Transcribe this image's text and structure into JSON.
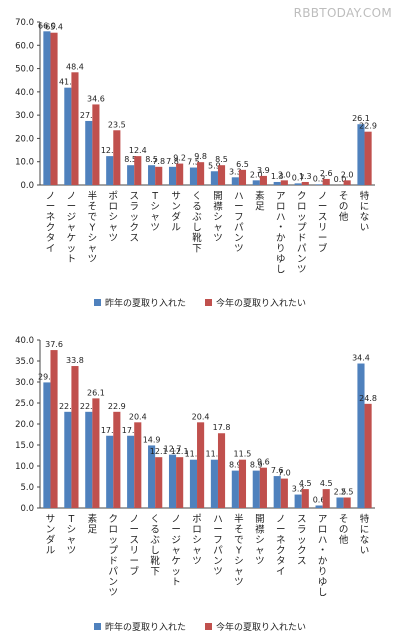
{
  "watermark": "RBBTODAY.COM",
  "colors": {
    "series_a": "#4f81bd",
    "series_b": "#c0504d",
    "axis": "#444444"
  },
  "chart_data": [
    {
      "type": "bar",
      "title": "",
      "xlabel": "",
      "ylabel": "",
      "ylim": [
        0,
        70
      ],
      "yticks": [
        "0.0",
        "10.0",
        "20.0",
        "30.0",
        "40.0",
        "50.0",
        "60.0",
        "70.0"
      ],
      "grid": false,
      "legend": "bottom",
      "categories": [
        "ノーネクタイ",
        "ノージャケット",
        "半そでYシャツ",
        "ポロシャツ",
        "スラックス",
        "Tシャツ",
        "サンダル",
        "くるぶし靴下",
        "開襟シャツ",
        "ハーフパンツ",
        "素足",
        "アロハ・かりゆし",
        "クロップドパンツ",
        "ノースリーブ",
        "その他",
        "特にない"
      ],
      "series": [
        {
          "name": "昨年の夏取り入れた",
          "values": [
            66.0,
            41.8,
            27.5,
            12.4,
            8.5,
            8.5,
            7.8,
            7.5,
            5.9,
            3.3,
            2.0,
            1.3,
            0.7,
            0.3,
            0.0,
            26.1
          ],
          "labels": [
            "66.0",
            "41.8",
            "27.5",
            "12.4",
            "8.5",
            "8.5",
            "7.8",
            "7.5",
            "5.9",
            "3.3",
            "2.0",
            "1.3",
            "0.7",
            "0.3",
            "0.0",
            "26.1"
          ]
        },
        {
          "name": "今年の夏取り入れたい",
          "values": [
            65.4,
            48.4,
            34.6,
            23.5,
            12.4,
            7.8,
            9.2,
            9.8,
            8.5,
            6.5,
            3.9,
            2.0,
            1.3,
            2.6,
            2.0,
            22.9
          ],
          "labels": [
            "65.4",
            "48.4",
            "34.6",
            "23.5",
            "12.4",
            "7.8",
            "9.2",
            "9.8",
            "8.5",
            "6.5",
            "3.9",
            "2.0",
            "1.3",
            "2.6",
            "2.0",
            "22.9"
          ]
        }
      ]
    },
    {
      "type": "bar",
      "title": "",
      "xlabel": "",
      "ylabel": "",
      "ylim": [
        0,
        40
      ],
      "yticks": [
        "0.0",
        "5.0",
        "10.0",
        "15.0",
        "20.0",
        "25.0",
        "30.0",
        "35.0",
        "40.0"
      ],
      "grid": false,
      "legend": "bottom",
      "categories": [
        "サンダル",
        "Tシャツ",
        "素足",
        "クロップドパンツ",
        "ノースリーブ",
        "くるぶし靴下",
        "ノージャケット",
        "ポロシャツ",
        "ハーフパンツ",
        "半そでYシャツ",
        "開襟シャツ",
        "ノーネクタイ",
        "スラックス",
        "アロハ・かりゆし",
        "その他",
        "特にない"
      ],
      "series": [
        {
          "name": "昨年の夏取り入れた",
          "values": [
            29.9,
            22.9,
            22.9,
            17.2,
            17.2,
            14.9,
            12.7,
            11.5,
            11.5,
            8.9,
            8.9,
            7.6,
            3.2,
            0.6,
            2.5,
            34.4
          ],
          "labels": [
            "29.9",
            "22.9",
            "22.9",
            "17.2",
            "17.2",
            "14.9",
            "12.7",
            "11.5",
            "11.5",
            "8.9",
            "8.9",
            "7.6",
            "3.2",
            "0.6",
            "2.5",
            "34.4"
          ]
        },
        {
          "name": "今年の夏取り入れたい",
          "values": [
            37.6,
            33.8,
            26.1,
            22.9,
            20.4,
            12.1,
            12.1,
            20.4,
            17.8,
            11.5,
            9.6,
            7.0,
            4.5,
            4.5,
            2.5,
            24.8
          ],
          "labels": [
            "37.6",
            "33.8",
            "26.1",
            "22.9",
            "20.4",
            "12.1",
            "12.1",
            "20.4",
            "17.8",
            "11.5",
            "9.6",
            "7.0",
            "4.5",
            "4.5",
            "2.5",
            "24.8"
          ]
        }
      ]
    }
  ]
}
